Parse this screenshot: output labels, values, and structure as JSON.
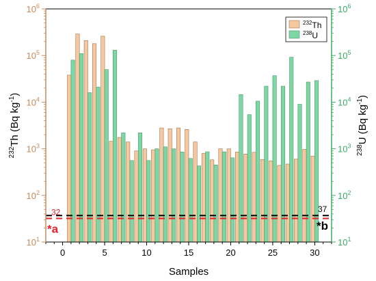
{
  "chart_data": {
    "type": "bar",
    "x": [
      1,
      2,
      3,
      4,
      5,
      6,
      7,
      8,
      9,
      10,
      11,
      12,
      13,
      14,
      15,
      16,
      17,
      18,
      19,
      20,
      21,
      22,
      23,
      24,
      25,
      26,
      27,
      28,
      29,
      30
    ],
    "series": [
      {
        "name": "232Th",
        "label_sup": "232",
        "label_base": "Th",
        "axis": "left",
        "color": "#f5c8a0",
        "values": [
          38000,
          290000,
          210000,
          180000,
          260000,
          1450,
          1750,
          1400,
          900,
          1000,
          950,
          2800,
          2700,
          2800,
          2600,
          1400,
          800,
          580,
          1000,
          1000,
          850,
          770,
          840,
          590,
          550,
          440,
          470,
          600,
          970,
          700
        ]
      },
      {
        "name": "238U",
        "label_sup": "238",
        "label_base": "U",
        "axis": "right",
        "color": "#7ed6a4",
        "values": [
          80000,
          110000,
          16000,
          21000,
          50000,
          130000,
          2200,
          560,
          2200,
          560,
          1000,
          1100,
          1000,
          850,
          620,
          430,
          860,
          450,
          860,
          640,
          14500,
          5400,
          10500,
          22000,
          37000,
          22000,
          92000,
          9000,
          27000,
          29000
        ]
      }
    ],
    "xlabel": "Samples",
    "xlim": [
      -2,
      32
    ],
    "xticks": [
      "0",
      "5",
      "10",
      "15",
      "20",
      "25",
      "30"
    ],
    "ylabel_left": {
      "sup": "232",
      "base": "Th (Bq kg",
      "exp": "-1",
      "close": ")"
    },
    "ylabel_right": {
      "sup": "238",
      "base": "U (Bq kg",
      "exp": "-1",
      "close": ")"
    },
    "yscale": "log",
    "ylim": [
      10,
      1000000
    ],
    "yticks": [
      {
        "base": "10",
        "exp": "1"
      },
      {
        "base": "10",
        "exp": "2"
      },
      {
        "base": "10",
        "exp": "3"
      },
      {
        "base": "10",
        "exp": "4"
      },
      {
        "base": "10",
        "exp": "5"
      },
      {
        "base": "10",
        "exp": "6"
      }
    ],
    "reference_lines": [
      {
        "value": 32,
        "label": "32",
        "color": "#e8202a",
        "marker": "*a",
        "axis": "left"
      },
      {
        "value": 37,
        "label": "37",
        "color": "#000000",
        "marker": "*b",
        "axis": "right"
      }
    ],
    "left_axis_color": "#c88a5a",
    "right_axis_color": "#3daa66",
    "legend_position": "top-right",
    "grid": false
  }
}
